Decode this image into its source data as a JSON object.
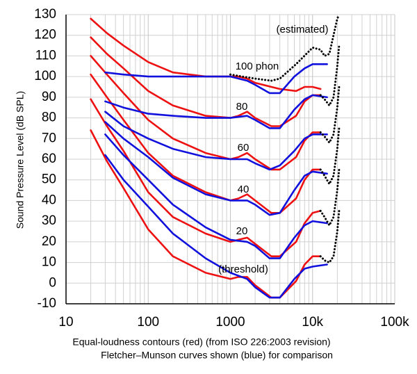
{
  "chart_data": {
    "type": "line",
    "xlabel": [
      "Equal-loudness contours (red) (from ISO 226:2003 revision)",
      "Fletcher–Munson curves shown (blue) for comparison"
    ],
    "ylabel": "Sound Pressure Level (dB SPL)",
    "annotations": [
      "(estimated)",
      "100 phon",
      "80",
      "60",
      "40",
      "20",
      "(threshold)"
    ],
    "x_log": true,
    "grid": true,
    "xlim": [
      10,
      100000
    ],
    "ylim": [
      -10,
      130
    ],
    "xticks": [
      10,
      100,
      1000,
      {
        "value": 10000,
        "label": "10k"
      },
      {
        "value": 100000,
        "label": "100k"
      }
    ],
    "yticks": [
      -10,
      0,
      10,
      20,
      30,
      40,
      50,
      60,
      70,
      80,
      90,
      100,
      110,
      120,
      130
    ],
    "series": [
      {
        "color": "#ee1111",
        "style": "solid",
        "x": [
          20,
          31.5,
          50,
          100,
          200,
          500,
          1000,
          1250,
          1600,
          2000,
          3150,
          4000,
          6300,
          8000,
          10000,
          12500
        ],
        "values": [
          74,
          59,
          46,
          26,
          13,
          5,
          2,
          3,
          3,
          -1,
          -7,
          -7,
          1,
          9,
          13,
          13
        ]
      },
      {
        "color": "#ee1111",
        "style": "solid",
        "x": [
          20,
          31.5,
          50,
          100,
          200,
          500,
          1000,
          1250,
          1600,
          2000,
          3150,
          4000,
          6300,
          8000,
          10000,
          12500
        ],
        "values": [
          89,
          76,
          64,
          44,
          32,
          24,
          20,
          21,
          22,
          19,
          13,
          13,
          20,
          29,
          34,
          35
        ]
      },
      {
        "color": "#ee1111",
        "style": "solid",
        "x": [
          20,
          31.5,
          50,
          100,
          200,
          500,
          1000,
          1250,
          1600,
          2000,
          3150,
          4000,
          6300,
          8000,
          10000,
          12500
        ],
        "values": [
          101,
          90,
          79,
          63,
          52,
          44,
          40,
          41,
          43,
          40,
          34,
          34,
          41,
          50,
          55,
          55
        ]
      },
      {
        "color": "#ee1111",
        "style": "solid",
        "x": [
          20,
          31.5,
          50,
          100,
          200,
          500,
          1000,
          1250,
          1600,
          2000,
          3150,
          4000,
          6300,
          8000,
          10000,
          12500
        ],
        "values": [
          110,
          101,
          92,
          79,
          70,
          63,
          60,
          61,
          63,
          60,
          55,
          55,
          61,
          69,
          73,
          73
        ]
      },
      {
        "color": "#ee1111",
        "style": "solid",
        "x": [
          20,
          31.5,
          50,
          100,
          200,
          500,
          1000,
          1250,
          1600,
          2000,
          3150,
          4000,
          6300,
          8000,
          10000,
          12500
        ],
        "values": [
          119,
          111,
          104,
          93,
          86,
          81,
          80,
          81,
          83,
          80,
          76,
          76,
          81,
          88,
          91,
          91
        ]
      },
      {
        "color": "#ee1111",
        "style": "solid",
        "x": [
          20,
          31.5,
          50,
          100,
          200,
          500,
          1000,
          1250,
          1600,
          2000,
          3150,
          4000,
          6300,
          8000,
          10000,
          12500
        ],
        "values": [
          128,
          121,
          115,
          107,
          102,
          100,
          100,
          100,
          99,
          97,
          95,
          94,
          93,
          95,
          95,
          94
        ]
      },
      {
        "color": "#1111dd",
        "style": "solid",
        "x": [
          30,
          50,
          100,
          200,
          500,
          1000,
          1600,
          2000,
          3000,
          4000,
          6000,
          8000,
          10000,
          15000
        ],
        "values": [
          62,
          50,
          37,
          24,
          12,
          5,
          2,
          -2,
          -7,
          -7,
          2,
          7,
          8,
          9
        ]
      },
      {
        "color": "#1111dd",
        "style": "solid",
        "x": [
          30,
          50,
          100,
          200,
          500,
          1000,
          1600,
          2000,
          3000,
          4000,
          6000,
          8000,
          10000,
          15000
        ],
        "values": [
          72,
          62,
          50,
          38,
          27,
          21,
          20,
          18,
          12,
          12,
          22,
          28,
          30,
          29
        ]
      },
      {
        "color": "#1111dd",
        "style": "solid",
        "x": [
          30,
          50,
          100,
          200,
          500,
          1000,
          1600,
          2000,
          3000,
          4000,
          6000,
          8000,
          10000,
          15000
        ],
        "values": [
          78,
          70,
          61,
          51,
          43,
          40,
          40,
          38,
          33,
          34,
          45,
          52,
          54,
          53
        ]
      },
      {
        "color": "#1111dd",
        "style": "solid",
        "x": [
          30,
          50,
          100,
          200,
          500,
          1000,
          1600,
          2000,
          3000,
          4000,
          6000,
          8000,
          10000,
          15000
        ],
        "values": [
          83,
          76,
          70,
          65,
          61,
          60,
          60,
          58,
          55,
          57,
          64,
          70,
          72,
          72
        ]
      },
      {
        "color": "#1111dd",
        "style": "solid",
        "x": [
          30,
          50,
          100,
          200,
          500,
          1000,
          1600,
          2000,
          3000,
          4000,
          6000,
          8000,
          10000,
          15000
        ],
        "values": [
          88,
          85,
          82,
          81,
          80,
          80,
          81,
          79,
          75,
          75,
          84,
          89,
          91,
          90
        ]
      },
      {
        "color": "#1111dd",
        "style": "solid",
        "x": [
          30,
          50,
          100,
          200,
          500,
          1000,
          1600,
          2000,
          3000,
          4000,
          6000,
          8000,
          10000,
          15000
        ],
        "values": [
          102,
          101,
          100,
          100,
          100,
          100,
          98,
          96,
          92,
          92,
          100,
          104,
          106,
          106
        ]
      },
      {
        "color": "#000000",
        "style": "dotted",
        "x": [
          12500,
          14000,
          16000,
          18000,
          20000,
          21000
        ],
        "values": [
          13,
          11,
          10,
          13,
          25,
          35
        ]
      },
      {
        "color": "#000000",
        "style": "dotted",
        "x": [
          12500,
          14000,
          16000,
          18000,
          20000,
          21000
        ],
        "values": [
          35,
          32,
          28,
          32,
          45,
          55
        ]
      },
      {
        "color": "#000000",
        "style": "dotted",
        "x": [
          12500,
          14000,
          16000,
          18000,
          20000,
          21000
        ],
        "values": [
          55,
          52,
          48,
          52,
          65,
          75
        ]
      },
      {
        "color": "#000000",
        "style": "dotted",
        "x": [
          12500,
          14000,
          16000,
          18000,
          20000,
          21000
        ],
        "values": [
          73,
          71,
          68,
          72,
          85,
          95
        ]
      },
      {
        "color": "#000000",
        "style": "dotted",
        "x": [
          12500,
          14000,
          16000,
          18000,
          20000,
          21000
        ],
        "values": [
          91,
          89,
          86,
          90,
          105,
          115
        ]
      },
      {
        "color": "#000000",
        "style": "dotted",
        "x": [
          1000,
          2000,
          3150,
          4000,
          6300,
          10000,
          12500,
          14000,
          16000,
          18000,
          20000,
          21000
        ],
        "values": [
          101,
          99,
          98,
          99,
          106,
          114,
          113,
          110,
          111,
          120,
          128,
          130
        ]
      }
    ]
  }
}
